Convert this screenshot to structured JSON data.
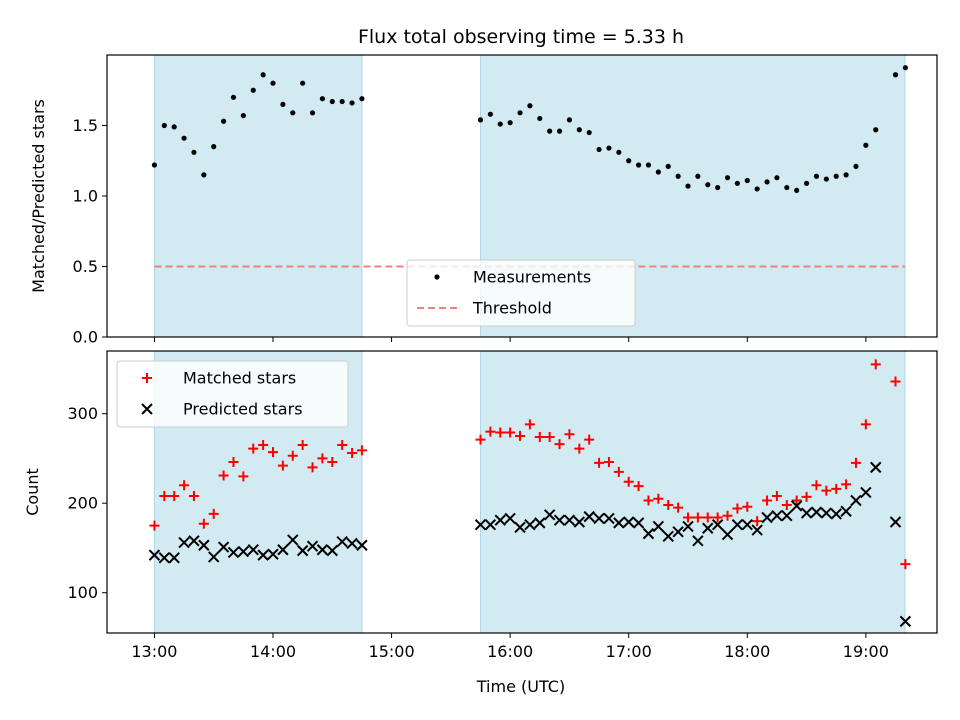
{
  "chart_data": [
    {
      "type": "scatter",
      "title": "Flux total observing time = 5.33 h",
      "xlabel": "",
      "ylabel": "Matched/Predicted stars",
      "xlim_hours": [
        12.6,
        19.6
      ],
      "ylim": [
        0,
        2.0
      ],
      "yticks": [
        0.0,
        0.5,
        1.0,
        1.5
      ],
      "ytick_labels": [
        "0.0",
        "0.5",
        "1.0",
        "1.5"
      ],
      "observing_windows_hours": [
        [
          13.0,
          14.75
        ],
        [
          15.75,
          19.33
        ]
      ],
      "window_color": "#add8e6",
      "threshold": {
        "name": "Threshold",
        "value": 0.5,
        "color": "#f08080",
        "style": "dashed"
      },
      "legend": {
        "placement": "lower-center",
        "entries": [
          "Measurements",
          "Threshold"
        ]
      },
      "series": [
        {
          "name": "Measurements",
          "marker": "dot",
          "color": "#000000",
          "points": [
            [
              "13:00",
              1.22
            ],
            [
              "13:05",
              1.5
            ],
            [
              "13:10",
              1.49
            ],
            [
              "13:15",
              1.41
            ],
            [
              "13:20",
              1.31
            ],
            [
              "13:25",
              1.15
            ],
            [
              "13:30",
              1.35
            ],
            [
              "13:35",
              1.53
            ],
            [
              "13:40",
              1.7
            ],
            [
              "13:45",
              1.57
            ],
            [
              "13:50",
              1.75
            ],
            [
              "13:55",
              1.86
            ],
            [
              "14:00",
              1.8
            ],
            [
              "14:05",
              1.65
            ],
            [
              "14:10",
              1.59
            ],
            [
              "14:15",
              1.8
            ],
            [
              "14:20",
              1.59
            ],
            [
              "14:25",
              1.69
            ],
            [
              "14:30",
              1.67
            ],
            [
              "14:35",
              1.67
            ],
            [
              "14:40",
              1.66
            ],
            [
              "14:45",
              1.69
            ],
            [
              "15:45",
              1.54
            ],
            [
              "15:50",
              1.58
            ],
            [
              "15:55",
              1.51
            ],
            [
              "16:00",
              1.52
            ],
            [
              "16:05",
              1.59
            ],
            [
              "16:10",
              1.64
            ],
            [
              "16:15",
              1.55
            ],
            [
              "16:20",
              1.46
            ],
            [
              "16:25",
              1.46
            ],
            [
              "16:30",
              1.54
            ],
            [
              "16:35",
              1.47
            ],
            [
              "16:40",
              1.45
            ],
            [
              "16:45",
              1.33
            ],
            [
              "16:50",
              1.34
            ],
            [
              "16:55",
              1.31
            ],
            [
              "17:00",
              1.25
            ],
            [
              "17:05",
              1.22
            ],
            [
              "17:10",
              1.22
            ],
            [
              "17:15",
              1.17
            ],
            [
              "17:20",
              1.21
            ],
            [
              "17:25",
              1.14
            ],
            [
              "17:30",
              1.07
            ],
            [
              "17:35",
              1.14
            ],
            [
              "17:40",
              1.08
            ],
            [
              "17:45",
              1.06
            ],
            [
              "17:50",
              1.13
            ],
            [
              "17:55",
              1.09
            ],
            [
              "18:00",
              1.11
            ],
            [
              "18:05",
              1.05
            ],
            [
              "18:10",
              1.1
            ],
            [
              "18:15",
              1.13
            ],
            [
              "18:20",
              1.06
            ],
            [
              "18:25",
              1.04
            ],
            [
              "18:30",
              1.09
            ],
            [
              "18:35",
              1.14
            ],
            [
              "18:40",
              1.12
            ],
            [
              "18:45",
              1.14
            ],
            [
              "18:50",
              1.15
            ],
            [
              "18:55",
              1.21
            ],
            [
              "19:00",
              1.36
            ],
            [
              "19:05",
              1.47
            ],
            [
              "19:15",
              1.86
            ],
            [
              "19:20",
              1.91
            ]
          ]
        }
      ]
    },
    {
      "type": "scatter",
      "title": "",
      "xlabel": "Time (UTC)",
      "ylabel": "Count",
      "xlim_hours": [
        12.6,
        19.6
      ],
      "ylim": [
        55,
        370
      ],
      "yticks": [
        100,
        200,
        300
      ],
      "ytick_labels": [
        "100",
        "200",
        "300"
      ],
      "xticks_hours": [
        13,
        14,
        15,
        16,
        17,
        18,
        19
      ],
      "xtick_labels": [
        "13:00",
        "14:00",
        "15:00",
        "16:00",
        "17:00",
        "18:00",
        "19:00"
      ],
      "observing_windows_hours": [
        [
          13.0,
          14.75
        ],
        [
          15.75,
          19.33
        ]
      ],
      "window_color": "#add8e6",
      "legend": {
        "placement": "upper-left",
        "entries": [
          "Matched stars",
          "Predicted stars"
        ]
      },
      "series": [
        {
          "name": "Matched stars",
          "marker": "plus",
          "color": "#ff0000",
          "points": [
            [
              "13:00",
              175
            ],
            [
              "13:05",
              208
            ],
            [
              "13:10",
              208
            ],
            [
              "13:15",
              220
            ],
            [
              "13:20",
              208
            ],
            [
              "13:25",
              177
            ],
            [
              "13:30",
              188
            ],
            [
              "13:35",
              231
            ],
            [
              "13:40",
              246
            ],
            [
              "13:45",
              230
            ],
            [
              "13:50",
              261
            ],
            [
              "13:55",
              265
            ],
            [
              "14:00",
              257
            ],
            [
              "14:05",
              242
            ],
            [
              "14:10",
              253
            ],
            [
              "14:15",
              265
            ],
            [
              "14:20",
              240
            ],
            [
              "14:25",
              250
            ],
            [
              "14:30",
              246
            ],
            [
              "14:35",
              265
            ],
            [
              "14:40",
              256
            ],
            [
              "14:45",
              259
            ],
            [
              "15:45",
              271
            ],
            [
              "15:50",
              280
            ],
            [
              "15:55",
              279
            ],
            [
              "16:00",
              279
            ],
            [
              "16:05",
              275
            ],
            [
              "16:10",
              288
            ],
            [
              "16:15",
              274
            ],
            [
              "16:20",
              274
            ],
            [
              "16:25",
              266
            ],
            [
              "16:30",
              277
            ],
            [
              "16:35",
              261
            ],
            [
              "16:40",
              271
            ],
            [
              "16:45",
              245
            ],
            [
              "16:50",
              246
            ],
            [
              "16:55",
              235
            ],
            [
              "17:00",
              224
            ],
            [
              "17:05",
              219
            ],
            [
              "17:10",
              203
            ],
            [
              "17:15",
              205
            ],
            [
              "17:20",
              198
            ],
            [
              "17:25",
              195
            ],
            [
              "17:30",
              184
            ],
            [
              "17:35",
              184
            ],
            [
              "17:40",
              184
            ],
            [
              "17:45",
              184
            ],
            [
              "17:50",
              186
            ],
            [
              "17:55",
              194
            ],
            [
              "18:00",
              196
            ],
            [
              "18:05",
              180
            ],
            [
              "18:10",
              203
            ],
            [
              "18:15",
              208
            ],
            [
              "18:20",
              198
            ],
            [
              "18:25",
              203
            ],
            [
              "18:30",
              207
            ],
            [
              "18:35",
              220
            ],
            [
              "18:40",
              214
            ],
            [
              "18:45",
              216
            ],
            [
              "18:50",
              221
            ],
            [
              "18:55",
              245
            ],
            [
              "19:00",
              288
            ],
            [
              "19:05",
              355
            ],
            [
              "19:15",
              336
            ],
            [
              "19:20",
              132
            ]
          ]
        },
        {
          "name": "Predicted stars",
          "marker": "x",
          "color": "#000000",
          "points": [
            [
              "13:00",
              142
            ],
            [
              "13:05",
              139
            ],
            [
              "13:10",
              139
            ],
            [
              "13:15",
              156
            ],
            [
              "13:20",
              158
            ],
            [
              "13:25",
              153
            ],
            [
              "13:30",
              140
            ],
            [
              "13:35",
              151
            ],
            [
              "13:40",
              145
            ],
            [
              "13:45",
              146
            ],
            [
              "13:50",
              148
            ],
            [
              "13:55",
              142
            ],
            [
              "14:00",
              143
            ],
            [
              "14:05",
              148
            ],
            [
              "14:10",
              159
            ],
            [
              "14:15",
              147
            ],
            [
              "14:20",
              152
            ],
            [
              "14:25",
              148
            ],
            [
              "14:30",
              147
            ],
            [
              "14:35",
              157
            ],
            [
              "14:40",
              155
            ],
            [
              "14:45",
              153
            ],
            [
              "15:45",
              176
            ],
            [
              "15:50",
              176
            ],
            [
              "15:55",
              181
            ],
            [
              "16:00",
              183
            ],
            [
              "16:05",
              173
            ],
            [
              "16:10",
              176
            ],
            [
              "16:15",
              178
            ],
            [
              "16:20",
              187
            ],
            [
              "16:25",
              181
            ],
            [
              "16:30",
              181
            ],
            [
              "16:35",
              179
            ],
            [
              "16:40",
              185
            ],
            [
              "16:45",
              183
            ],
            [
              "16:50",
              183
            ],
            [
              "16:55",
              178
            ],
            [
              "17:00",
              179
            ],
            [
              "17:05",
              178
            ],
            [
              "17:10",
              166
            ],
            [
              "17:15",
              174
            ],
            [
              "17:20",
              163
            ],
            [
              "17:25",
              168
            ],
            [
              "17:30",
              174
            ],
            [
              "17:35",
              158
            ],
            [
              "17:40",
              172
            ],
            [
              "17:45",
              176
            ],
            [
              "17:50",
              165
            ],
            [
              "17:55",
              176
            ],
            [
              "18:00",
              176
            ],
            [
              "18:05",
              170
            ],
            [
              "18:10",
              184
            ],
            [
              "18:15",
              186
            ],
            [
              "18:20",
              186
            ],
            [
              "18:25",
              197
            ],
            [
              "18:30",
              189
            ],
            [
              "18:35",
              190
            ],
            [
              "18:40",
              189
            ],
            [
              "18:45",
              188
            ],
            [
              "18:50",
              191
            ],
            [
              "18:55",
              203
            ],
            [
              "19:00",
              212
            ],
            [
              "19:05",
              240
            ],
            [
              "19:15",
              179
            ],
            [
              "19:20",
              68
            ]
          ]
        }
      ]
    }
  ]
}
